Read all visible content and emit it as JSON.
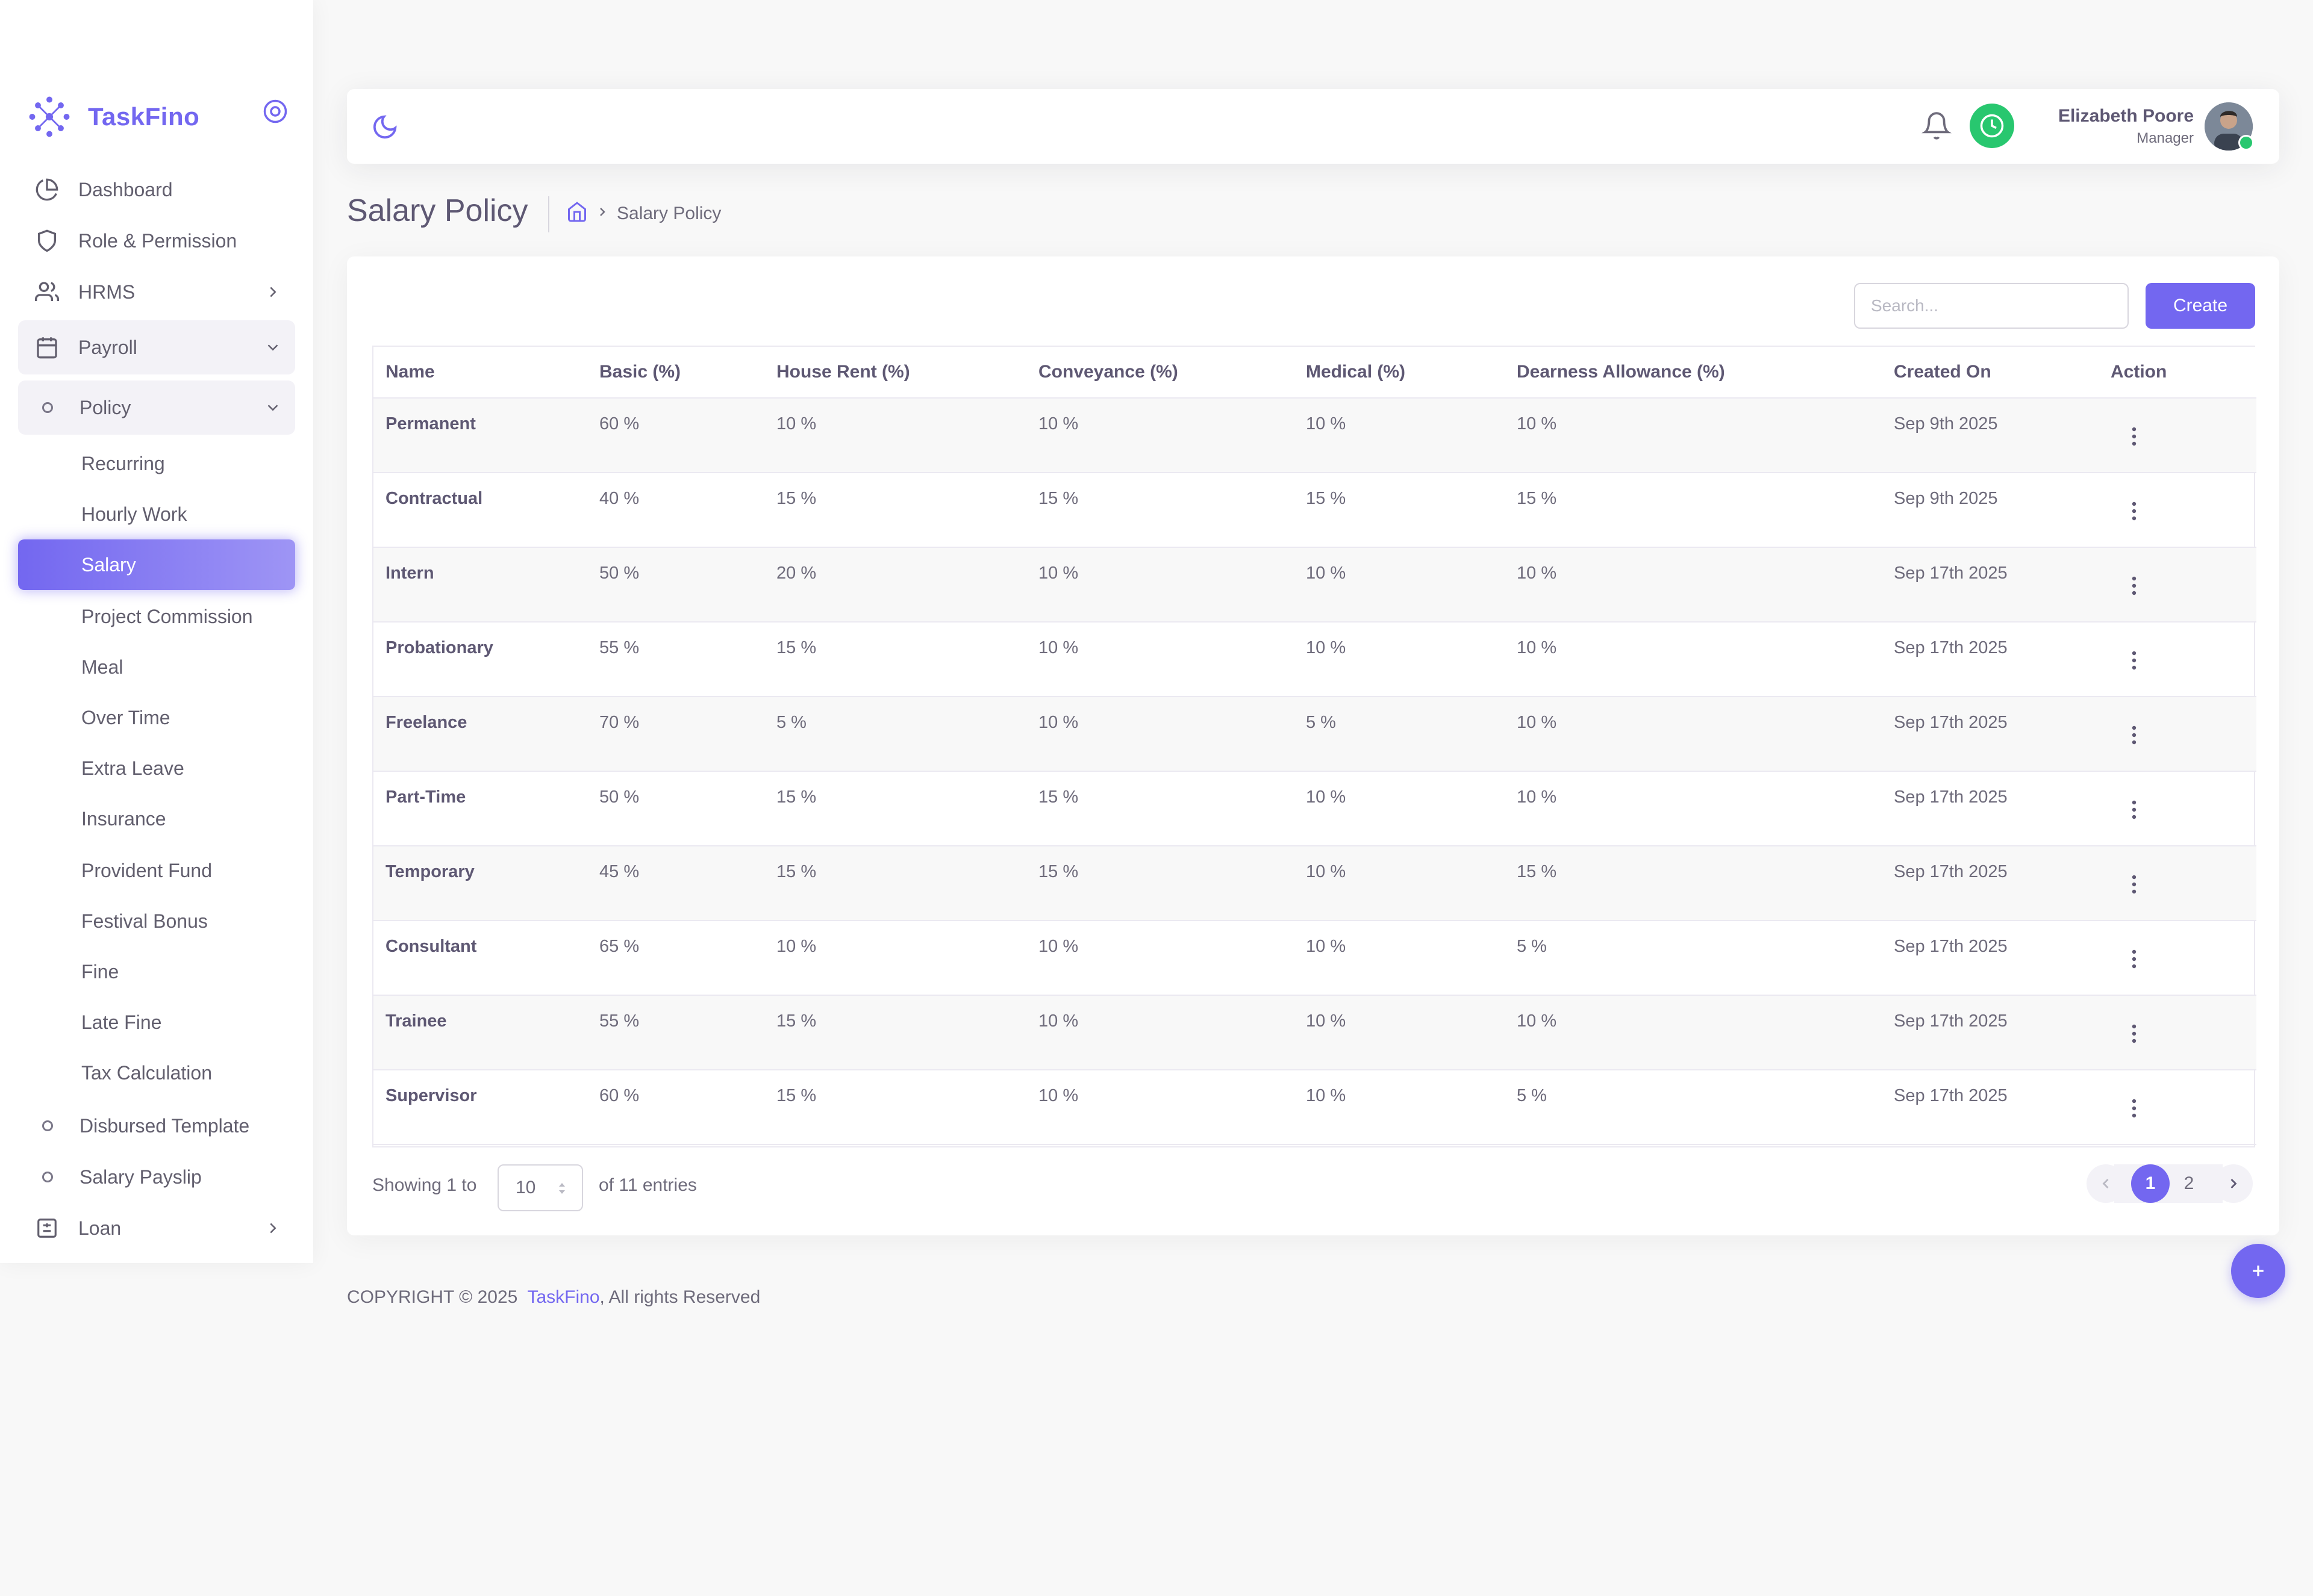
{
  "brand": {
    "name": "TaskFino"
  },
  "colors": {
    "accent": "#7367f0",
    "success": "#28c76f",
    "text": "#6e6b7b",
    "heading": "#5e5873"
  },
  "sidebar": {
    "items": [
      {
        "label": "Dashboard",
        "icon": "dashboard-icon"
      },
      {
        "label": "Role & Permission",
        "icon": "shield-icon"
      },
      {
        "label": "HRMS",
        "icon": "users-icon"
      },
      {
        "label": "Payroll",
        "icon": "calendar-icon"
      },
      {
        "label": "Policy",
        "icon": "circle-icon"
      }
    ],
    "policy_items": [
      "Recurring",
      "Hourly Work",
      "Salary",
      "Project Commission",
      "Meal",
      "Over Time",
      "Extra Leave",
      "Insurance",
      "Provident Fund",
      "Festival Bonus",
      "Fine",
      "Late Fine",
      "Tax Calculation"
    ],
    "active_item": "Salary",
    "bottom_items": [
      {
        "label": "Disbursed Template",
        "icon": "circle-icon"
      },
      {
        "label": "Salary Payslip",
        "icon": "circle-icon"
      },
      {
        "label": "Loan",
        "icon": "loan-icon"
      }
    ]
  },
  "header": {
    "user_name": "Elizabeth Poore",
    "user_role": "Manager"
  },
  "page": {
    "title": "Salary Policy",
    "breadcrumb": "Salary Policy"
  },
  "toolbar": {
    "search_placeholder": "Search...",
    "create_label": "Create"
  },
  "table": {
    "columns": [
      "Name",
      "Basic (%)",
      "House Rent (%)",
      "Conveyance (%)",
      "Medical (%)",
      "Dearness Allowance (%)",
      "Created On",
      "Action"
    ],
    "rows": [
      [
        "Permanent",
        "60 %",
        "10 %",
        "10 %",
        "10 %",
        "10 %",
        "Sep 9th 2025"
      ],
      [
        "Contractual",
        "40 %",
        "15 %",
        "15 %",
        "15 %",
        "15 %",
        "Sep 9th 2025"
      ],
      [
        "Intern",
        "50 %",
        "20 %",
        "10 %",
        "10 %",
        "10 %",
        "Sep 17th 2025"
      ],
      [
        "Probationary",
        "55 %",
        "15 %",
        "10 %",
        "10 %",
        "10 %",
        "Sep 17th 2025"
      ],
      [
        "Freelance",
        "70 %",
        "5 %",
        "10 %",
        "5 %",
        "10 %",
        "Sep 17th 2025"
      ],
      [
        "Part-Time",
        "50 %",
        "15 %",
        "15 %",
        "10 %",
        "10 %",
        "Sep 17th 2025"
      ],
      [
        "Temporary",
        "45 %",
        "15 %",
        "15 %",
        "10 %",
        "15 %",
        "Sep 17th 2025"
      ],
      [
        "Consultant",
        "65 %",
        "10 %",
        "10 %",
        "10 %",
        "5 %",
        "Sep 17th 2025"
      ],
      [
        "Trainee",
        "55 %",
        "15 %",
        "10 %",
        "10 %",
        "10 %",
        "Sep 17th 2025"
      ],
      [
        "Supervisor",
        "60 %",
        "15 %",
        "10 %",
        "10 %",
        "5 %",
        "Sep 17th 2025"
      ]
    ]
  },
  "pagination": {
    "showing_prefix": "Showing 1 to",
    "page_size": "10",
    "showing_suffix": "of 11 entries",
    "pages": [
      "1",
      "2"
    ],
    "current_page": "1"
  },
  "footer": {
    "copyright": "COPYRIGHT © 2025",
    "brand": "TaskFino",
    "rights": ", All rights Reserved"
  }
}
